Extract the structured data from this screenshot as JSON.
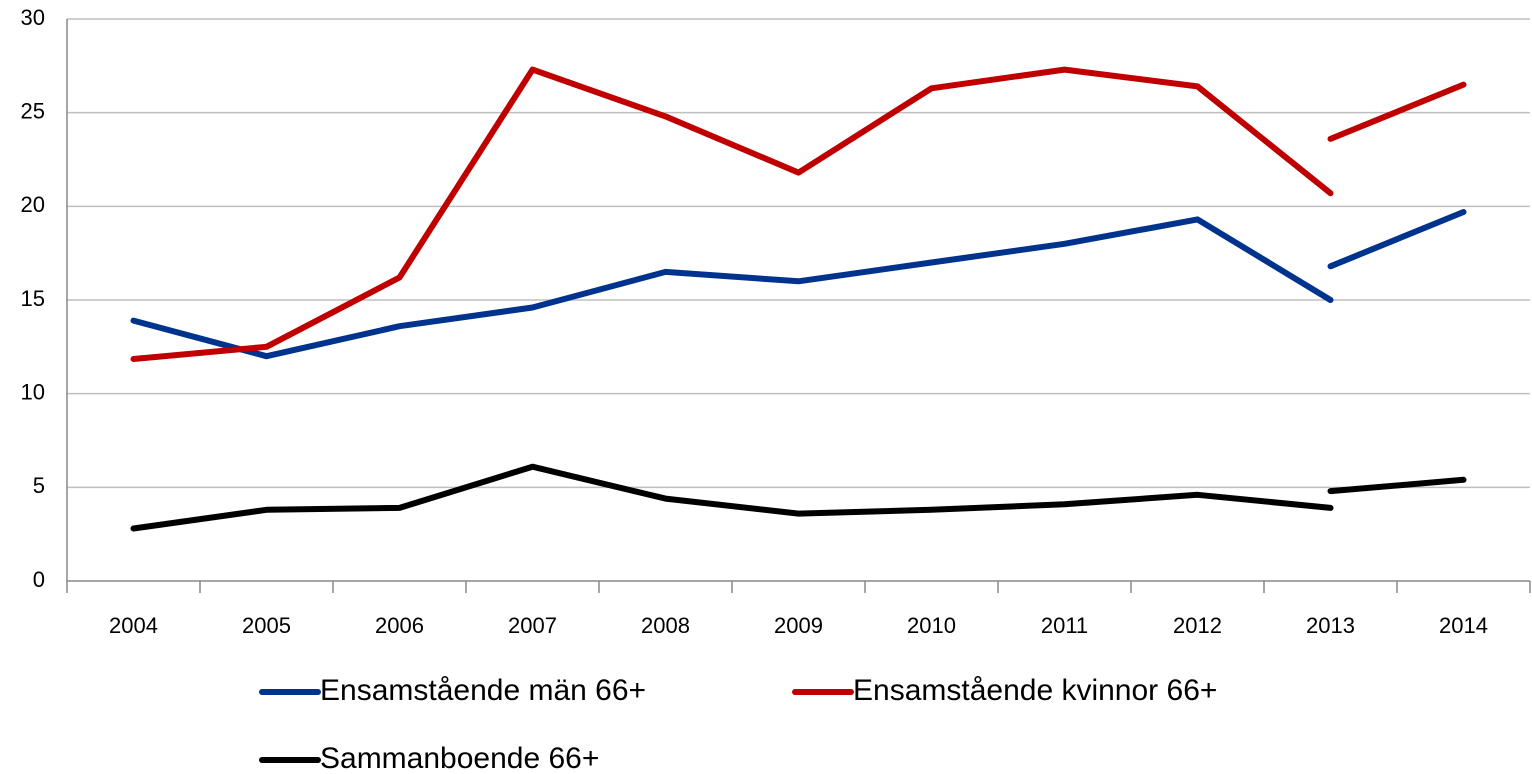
{
  "chart_data": {
    "type": "line",
    "categories": [
      "2004",
      "2005",
      "2006",
      "2007",
      "2008",
      "2009",
      "2010",
      "2011",
      "2012",
      "2013",
      "2014"
    ],
    "series": [
      {
        "name": "Ensamstående män 66+",
        "color": "#00338d",
        "values": [
          13.9,
          12.0,
          13.6,
          14.6,
          16.5,
          16.0,
          17.0,
          18.0,
          19.3,
          15.0,
          null
        ],
        "values_new": [
          null,
          null,
          null,
          null,
          null,
          null,
          null,
          null,
          null,
          16.8,
          19.7
        ]
      },
      {
        "name": "Ensamstående kvinnor 66+",
        "color": "#c00000",
        "values": [
          11.85,
          12.5,
          16.2,
          27.3,
          24.8,
          21.8,
          26.3,
          27.3,
          26.4,
          20.7,
          null
        ],
        "values_new": [
          null,
          null,
          null,
          null,
          null,
          null,
          null,
          null,
          null,
          23.6,
          26.5
        ]
      },
      {
        "name": "Sammanboende 66+",
        "color": "#000000",
        "values": [
          2.8,
          3.8,
          3.9,
          6.1,
          4.4,
          3.6,
          3.8,
          4.1,
          4.6,
          3.9,
          null
        ],
        "values_new": [
          null,
          null,
          null,
          null,
          null,
          null,
          null,
          null,
          null,
          4.8,
          5.4
        ]
      }
    ],
    "ylim": [
      0,
      30
    ],
    "yticks": [
      0,
      5,
      10,
      15,
      20,
      25,
      30
    ],
    "grid": true
  }
}
